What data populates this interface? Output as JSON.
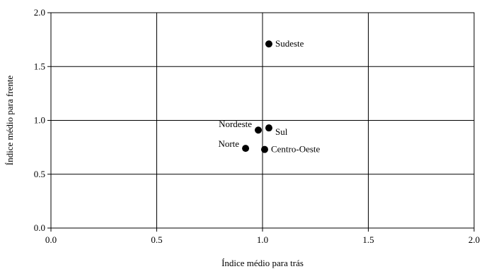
{
  "chart_data": {
    "type": "scatter",
    "xlabel": "Índice médio para trás",
    "ylabel": "Índice médio para frente",
    "xlim": [
      0,
      2
    ],
    "ylim": [
      0,
      2
    ],
    "xticks": [
      "0.0",
      "0.5",
      "1.0",
      "1.5",
      "2.0"
    ],
    "yticks": [
      "0.0",
      "0.5",
      "1.0",
      "1.5",
      "2.0"
    ],
    "grid": true,
    "legend": "none",
    "marker_color": "#000000",
    "points": [
      {
        "label": "Sudeste",
        "x": 1.03,
        "y": 1.71,
        "label_side": "right"
      },
      {
        "label": "Nordeste",
        "x": 0.98,
        "y": 0.91,
        "label_side": "left"
      },
      {
        "label": "Sul",
        "x": 1.03,
        "y": 0.93,
        "label_side": "right-below"
      },
      {
        "label": "Norte",
        "x": 0.92,
        "y": 0.74,
        "label_side": "left"
      },
      {
        "label": "Centro-Oeste",
        "x": 1.01,
        "y": 0.73,
        "label_side": "right"
      }
    ]
  }
}
